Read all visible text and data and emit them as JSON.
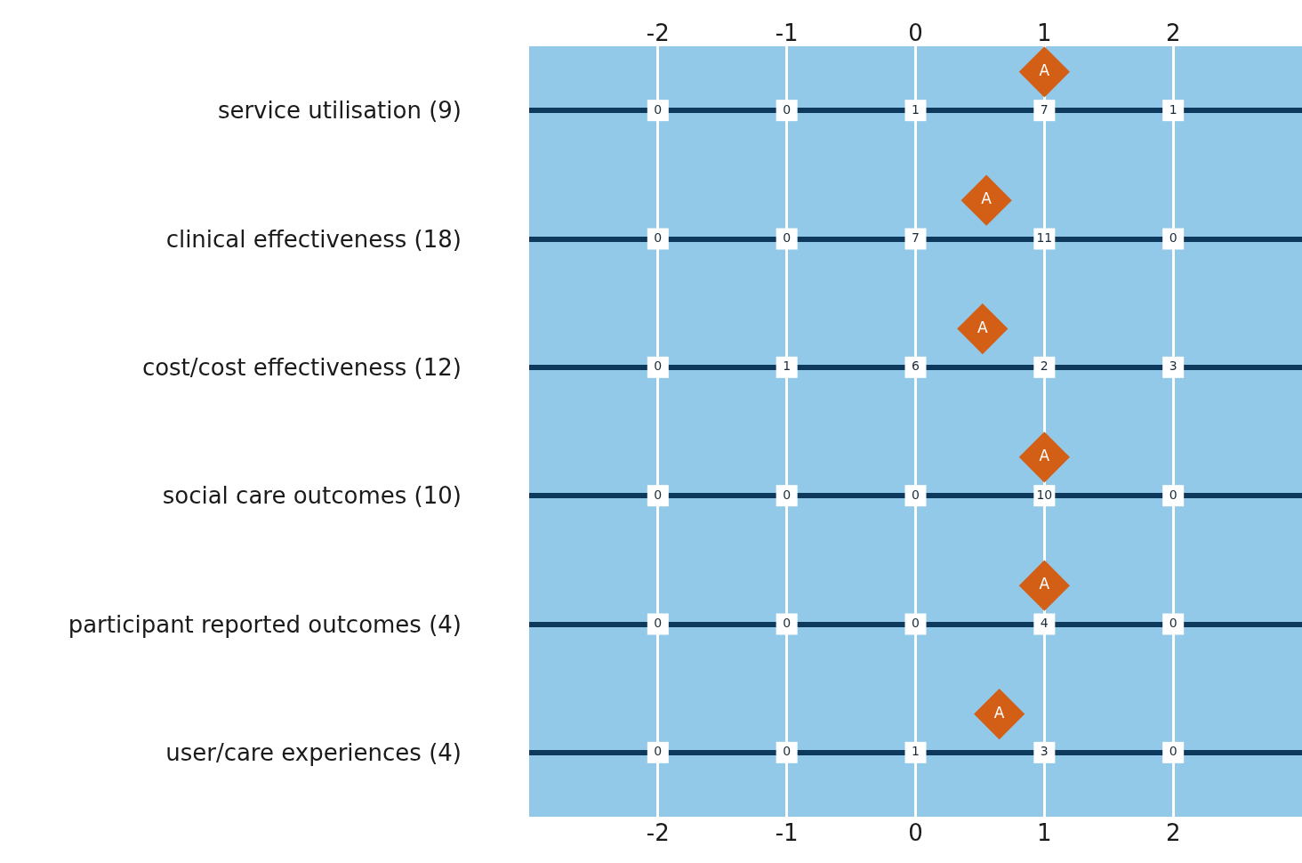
{
  "chart_data": {
    "type": "scatter",
    "orientation": "horizontal",
    "categories": [
      "service utilisation (9)",
      "clinical effectiveness (18)",
      "cost/cost effectiveness (12)",
      "social care outcomes (10)",
      "participant reported outcomes (4)",
      "user/care experiences (4)"
    ],
    "xlim": [
      -3,
      3
    ],
    "xticks": [
      -2,
      -1,
      0,
      1,
      2
    ],
    "x2lim": [
      -3,
      3
    ],
    "x2ticks": [
      -2,
      -1,
      0,
      1,
      2
    ],
    "grid": true,
    "legend": false,
    "series": [
      {
        "name": "A",
        "color": "#d35f17",
        "marker": "diamond",
        "values": [
          1,
          0.55,
          0.52,
          1,
          1,
          0.65
        ]
      }
    ],
    "annotations": [
      {
        "text": "0",
        "x": -2,
        "y": "service utilisation (9)"
      },
      {
        "text": "0",
        "x": -1,
        "y": "service utilisation (9)"
      },
      {
        "text": "1",
        "x": 0,
        "y": "service utilisation (9)"
      },
      {
        "text": "7",
        "x": 1,
        "y": "service utilisation (9)"
      },
      {
        "text": "1",
        "x": 2,
        "y": "service utilisation (9)"
      },
      {
        "text": "0",
        "x": -2,
        "y": "clinical effectiveness (18)"
      },
      {
        "text": "0",
        "x": -1,
        "y": "clinical effectiveness (18)"
      },
      {
        "text": "7",
        "x": 0,
        "y": "clinical effectiveness (18)"
      },
      {
        "text": "11",
        "x": 1,
        "y": "clinical effectiveness (18)"
      },
      {
        "text": "0",
        "x": 2,
        "y": "clinical effectiveness (18)"
      },
      {
        "text": "0",
        "x": -2,
        "y": "cost/cost effectiveness (12)"
      },
      {
        "text": "1",
        "x": -1,
        "y": "cost/cost effectiveness (12)"
      },
      {
        "text": "6",
        "x": 0,
        "y": "cost/cost effectiveness (12)"
      },
      {
        "text": "2",
        "x": 1,
        "y": "cost/cost effectiveness (12)"
      },
      {
        "text": "3",
        "x": 2,
        "y": "cost/cost effectiveness (12)"
      },
      {
        "text": "0",
        "x": -2,
        "y": "social care outcomes (10)"
      },
      {
        "text": "0",
        "x": -1,
        "y": "social care outcomes (10)"
      },
      {
        "text": "0",
        "x": 0,
        "y": "social care outcomes (10)"
      },
      {
        "text": "10",
        "x": 1,
        "y": "social care outcomes (10)"
      },
      {
        "text": "0",
        "x": 2,
        "y": "social care outcomes (10)"
      },
      {
        "text": "0",
        "x": -2,
        "y": "participant reported outcomes (4)"
      },
      {
        "text": "0",
        "x": -1,
        "y": "participant reported outcomes (4)"
      },
      {
        "text": "0",
        "x": 0,
        "y": "participant reported outcomes (4)"
      },
      {
        "text": "4",
        "x": 1,
        "y": "participant reported outcomes (4)"
      },
      {
        "text": "0",
        "x": 2,
        "y": "participant reported outcomes (4)"
      },
      {
        "text": "0",
        "x": -2,
        "y": "user/care experiences (4)"
      },
      {
        "text": "0",
        "x": -1,
        "y": "user/care experiences (4)"
      },
      {
        "text": "1",
        "x": 0,
        "y": "user/care experiences (4)"
      },
      {
        "text": "3",
        "x": 1,
        "y": "user/care experiences (4)"
      },
      {
        "text": "0",
        "x": 2,
        "y": "user/care experiences (4)"
      }
    ]
  }
}
